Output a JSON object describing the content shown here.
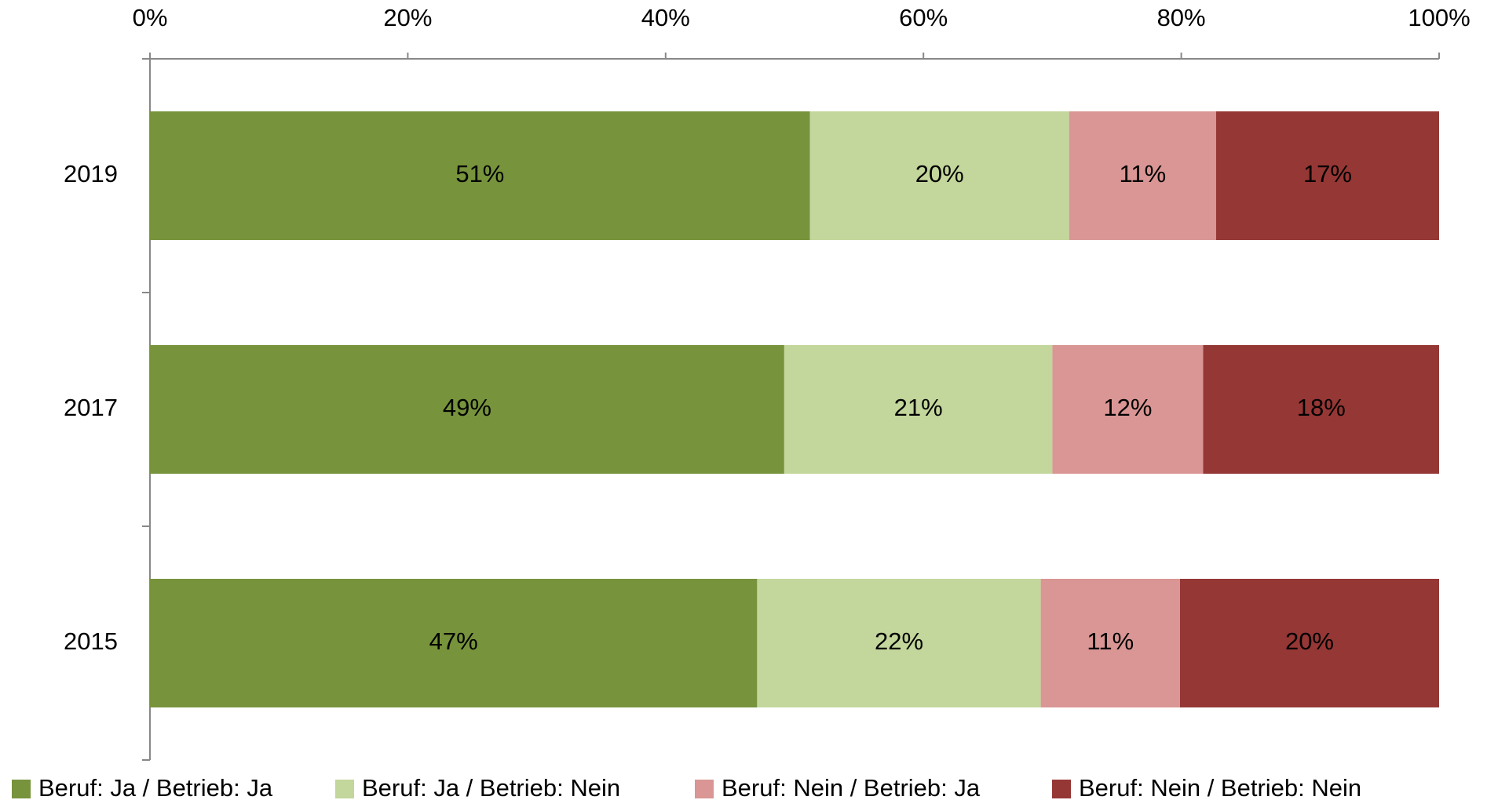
{
  "chart_data": {
    "type": "bar",
    "orientation": "horizontal",
    "stacked": true,
    "categories": [
      "2019",
      "2017",
      "2015"
    ],
    "series": [
      {
        "name": "Beruf: Ja / Betrieb: Ja",
        "color": "#77933c",
        "values": [
          51.2,
          49.2,
          47.1
        ],
        "value_labels": [
          "51%",
          "49%",
          "47%"
        ]
      },
      {
        "name": "Beruf: Ja / Betrieb: Nein",
        "color": "#c3d69b",
        "values": [
          20.1,
          20.8,
          22.0
        ],
        "value_labels": [
          "20%",
          "21%",
          "22%"
        ]
      },
      {
        "name": "Beruf: Nein / Betrieb: Ja",
        "color": "#d99694",
        "values": [
          11.4,
          11.7,
          10.8
        ],
        "value_labels": [
          "11%",
          "12%",
          "11%"
        ]
      },
      {
        "name": "Beruf: Nein / Betrieb: Nein",
        "color": "#953735",
        "values": [
          17.3,
          18.3,
          20.1
        ],
        "value_labels": [
          "17%",
          "18%",
          "20%"
        ]
      }
    ],
    "xlim": [
      0,
      100
    ],
    "xticks": [
      {
        "value": 0,
        "label": "0%"
      },
      {
        "value": 20,
        "label": "20%"
      },
      {
        "value": 40,
        "label": "40%"
      },
      {
        "value": 60,
        "label": "60%"
      },
      {
        "value": 80,
        "label": "80%"
      },
      {
        "value": 100,
        "label": "100%"
      }
    ],
    "legend": "bottom"
  }
}
